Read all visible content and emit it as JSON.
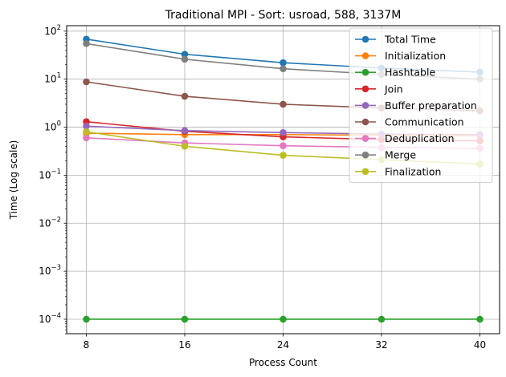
{
  "chart_data": {
    "type": "line",
    "title": "Traditional MPI - Sort: usroad, 588, 3137M",
    "xlabel": "Process Count",
    "ylabel": "Time (Log scale)",
    "x": [
      8,
      16,
      24,
      32,
      40
    ],
    "x_ticks": [
      "8",
      "16",
      "24",
      "32",
      "40"
    ],
    "y_scale": "log",
    "ylim": [
      5e-05,
      130
    ],
    "y_ticks": [
      {
        "value": 0.0001,
        "base": "10",
        "exp": "−4"
      },
      {
        "value": 0.001,
        "base": "10",
        "exp": "−3"
      },
      {
        "value": 0.01,
        "base": "10",
        "exp": "−2"
      },
      {
        "value": 0.1,
        "base": "10",
        "exp": "−1"
      },
      {
        "value": 1,
        "base": "10",
        "exp": "0"
      },
      {
        "value": 10,
        "base": "10",
        "exp": "1"
      },
      {
        "value": 100,
        "base": "10",
        "exp": "2"
      }
    ],
    "grid": true,
    "legend_position": "top-right",
    "series": [
      {
        "name": "Total Time",
        "color": "#1f77b4",
        "values": [
          68,
          33,
          22,
          17,
          14
        ]
      },
      {
        "name": "Initialization",
        "color": "#ff7f0e",
        "values": [
          0.75,
          0.7,
          0.7,
          0.68,
          0.66
        ]
      },
      {
        "name": "Hashtable",
        "color": "#2ca02c",
        "values": [
          0.0001,
          0.0001,
          0.0001,
          0.0001,
          0.0001
        ]
      },
      {
        "name": "Join",
        "color": "#d62728",
        "values": [
          1.3,
          0.82,
          0.63,
          0.55,
          0.52
        ]
      },
      {
        "name": "Buffer preparation",
        "color": "#9467bd",
        "values": [
          1.05,
          0.85,
          0.77,
          0.72,
          0.7
        ]
      },
      {
        "name": "Communication",
        "color": "#8c564b",
        "values": [
          8.8,
          4.4,
          3.0,
          2.5,
          2.2
        ]
      },
      {
        "name": "Deduplication",
        "color": "#e377c2",
        "values": [
          0.6,
          0.47,
          0.41,
          0.38,
          0.36
        ]
      },
      {
        "name": "Merge",
        "color": "#7f7f7f",
        "values": [
          55,
          26,
          16.5,
          12.5,
          10
        ]
      },
      {
        "name": "Finalization",
        "color": "#bcbd22",
        "values": [
          0.8,
          0.4,
          0.26,
          0.21,
          0.17
        ]
      }
    ]
  }
}
